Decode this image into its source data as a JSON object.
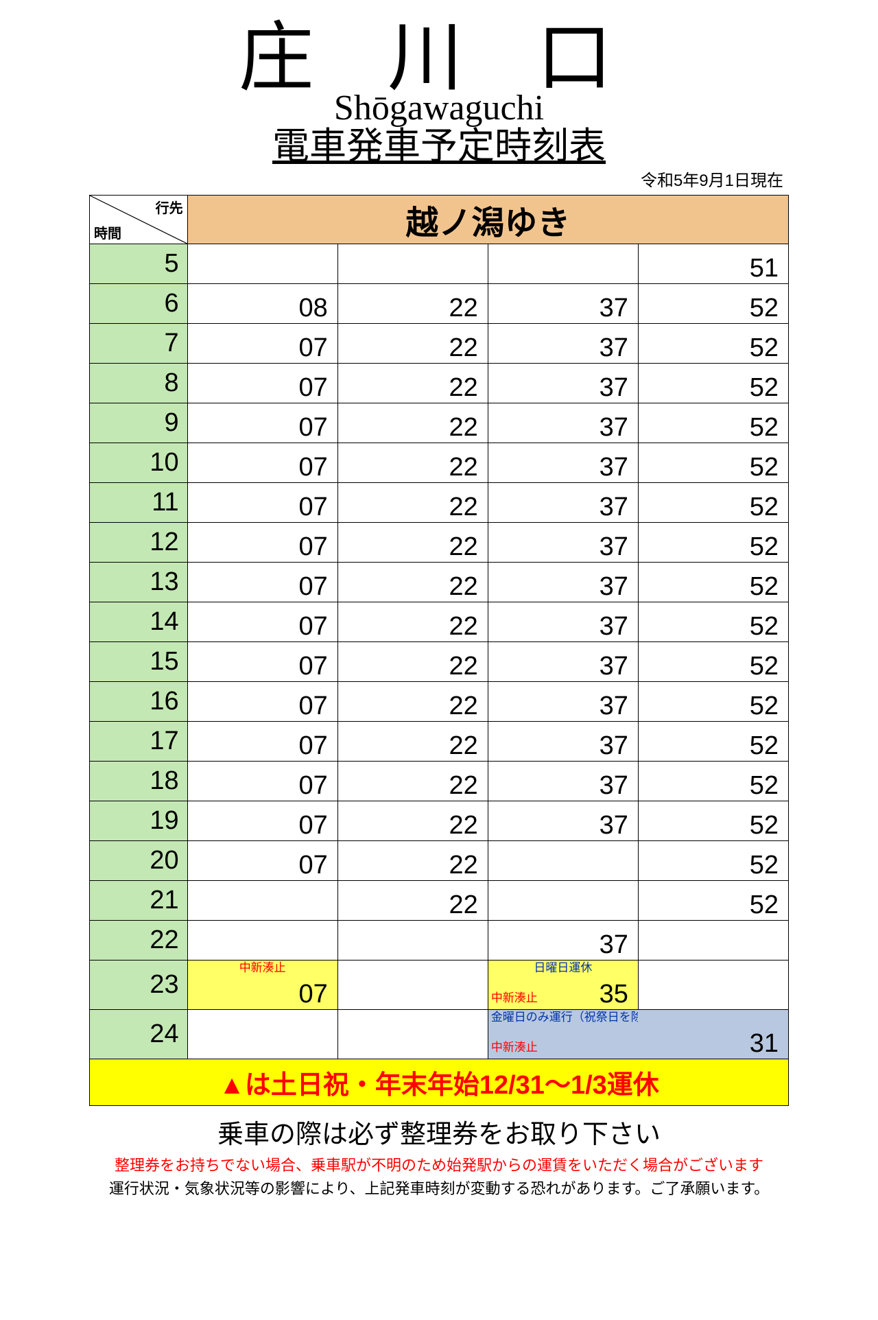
{
  "colors": {
    "hour_bg": "#c4e8b4",
    "dest_bg": "#f2c48d",
    "yellow_bg": "#ffff66",
    "blue_bg": "#b8c8e0",
    "red_text": "#ff0000",
    "blue_text": "#0033aa"
  },
  "header": {
    "station_jp": "庄 川 口",
    "station_en": "Shōgawaguchi",
    "subtitle": "電車発車予定時刻表",
    "date": "令和5年9月1日現在"
  },
  "corner": {
    "top": "行先",
    "bottom": "時間"
  },
  "destination": "越ノ潟ゆき",
  "rows": [
    {
      "hour": "5",
      "mins": [
        "",
        "",
        "",
        "51"
      ]
    },
    {
      "hour": "6",
      "mins": [
        "08",
        "22",
        "37",
        "52"
      ]
    },
    {
      "hour": "7",
      "mins": [
        "07",
        "22",
        "37",
        "52"
      ]
    },
    {
      "hour": "8",
      "mins": [
        "07",
        "22",
        "37",
        "52"
      ]
    },
    {
      "hour": "9",
      "mins": [
        "07",
        "22",
        "37",
        "52"
      ]
    },
    {
      "hour": "10",
      "mins": [
        "07",
        "22",
        "37",
        "52"
      ]
    },
    {
      "hour": "11",
      "mins": [
        "07",
        "22",
        "37",
        "52"
      ]
    },
    {
      "hour": "12",
      "mins": [
        "07",
        "22",
        "37",
        "52"
      ]
    },
    {
      "hour": "13",
      "mins": [
        "07",
        "22",
        "37",
        "52"
      ]
    },
    {
      "hour": "14",
      "mins": [
        "07",
        "22",
        "37",
        "52"
      ]
    },
    {
      "hour": "15",
      "mins": [
        "07",
        "22",
        "37",
        "52"
      ]
    },
    {
      "hour": "16",
      "mins": [
        "07",
        "22",
        "37",
        "52"
      ]
    },
    {
      "hour": "17",
      "mins": [
        "07",
        "22",
        "37",
        "52"
      ]
    },
    {
      "hour": "18",
      "mins": [
        "07",
        "22",
        "37",
        "52"
      ]
    },
    {
      "hour": "19",
      "mins": [
        "07",
        "22",
        "37",
        "52"
      ]
    },
    {
      "hour": "20",
      "mins": [
        "07",
        "22",
        "",
        "52"
      ]
    },
    {
      "hour": "21",
      "mins": [
        "",
        "22",
        "",
        "52"
      ]
    },
    {
      "hour": "22",
      "mins": [
        "",
        "",
        "37",
        ""
      ]
    }
  ],
  "row23": {
    "hour": "23",
    "c1_note": "中新湊止",
    "c1_val": "07",
    "c3_note_top": "日曜日運休",
    "c3_note_mid": "中新湊止",
    "c3_val": "35"
  },
  "row24": {
    "hour": "24",
    "note_top": "金曜日のみ運行（祝祭日を除く）",
    "note_mid": "中新湊止",
    "val": "31"
  },
  "banner": "▲は土日祝・年末年始12/31～1/3運休",
  "notice_big": "乗車の際は必ず整理券をお取り下さい",
  "notice_red": "整理券をお持ちでない場合、乗車駅が不明のため始発駅からの運賃をいただく場合がございます",
  "notice_small": "運行状況・気象状況等の影響により、上記発車時刻が変動する恐れがあります。ご了承願います。"
}
